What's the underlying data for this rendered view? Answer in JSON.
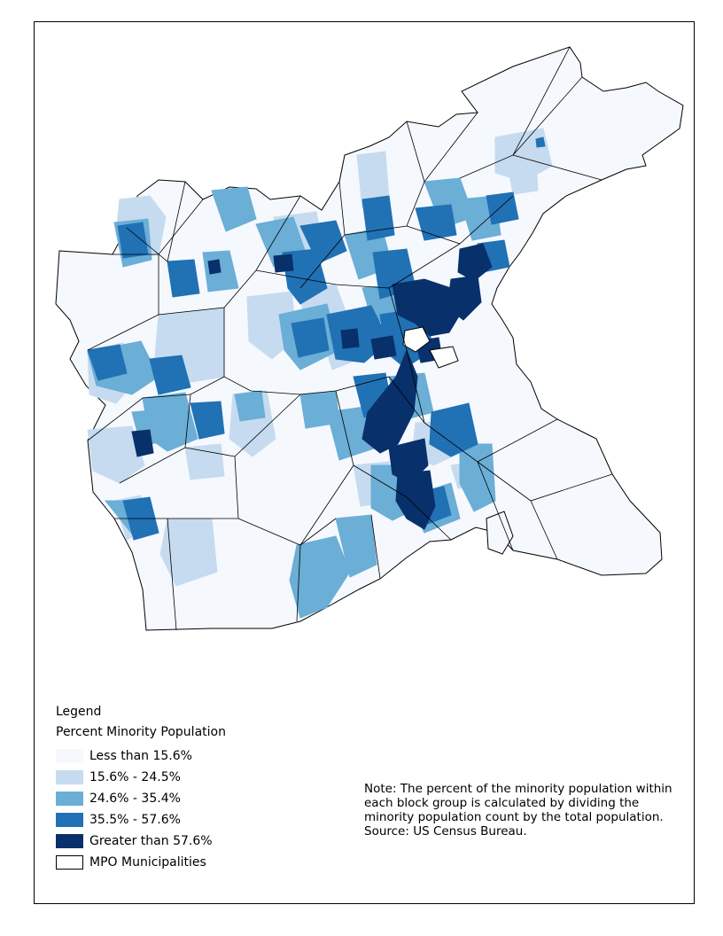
{
  "legend": {
    "title": "Legend",
    "subtitle": "Percent Minority Population",
    "items": [
      {
        "label": "Less than 15.6%",
        "color": "#f5f8fd",
        "border": "#f5f8fd"
      },
      {
        "label": "15.6% - 24.5%",
        "color": "#c6dbef",
        "border": "#c6dbef"
      },
      {
        "label": "24.6% - 35.4%",
        "color": "#6baed6",
        "border": "#6baed6"
      },
      {
        "label": "35.5% - 57.6%",
        "color": "#2171b5",
        "border": "#2171b5"
      },
      {
        "label": "Greater than 57.6%",
        "color": "#08306b",
        "border": "#08306b"
      },
      {
        "label": "MPO Municipalities",
        "color": "#ffffff",
        "border": "#000000"
      }
    ]
  },
  "note": {
    "text": "Note: The percent of the minority population within each block group is calculated by dividing the minority population count by the total population.",
    "source": "Source: US Census Bureau."
  },
  "colors": {
    "class1": "#f5f8fd",
    "class2": "#c6dbef",
    "class3": "#6baed6",
    "class4": "#2171b5",
    "class5": "#08306b",
    "outline": "#000000"
  }
}
